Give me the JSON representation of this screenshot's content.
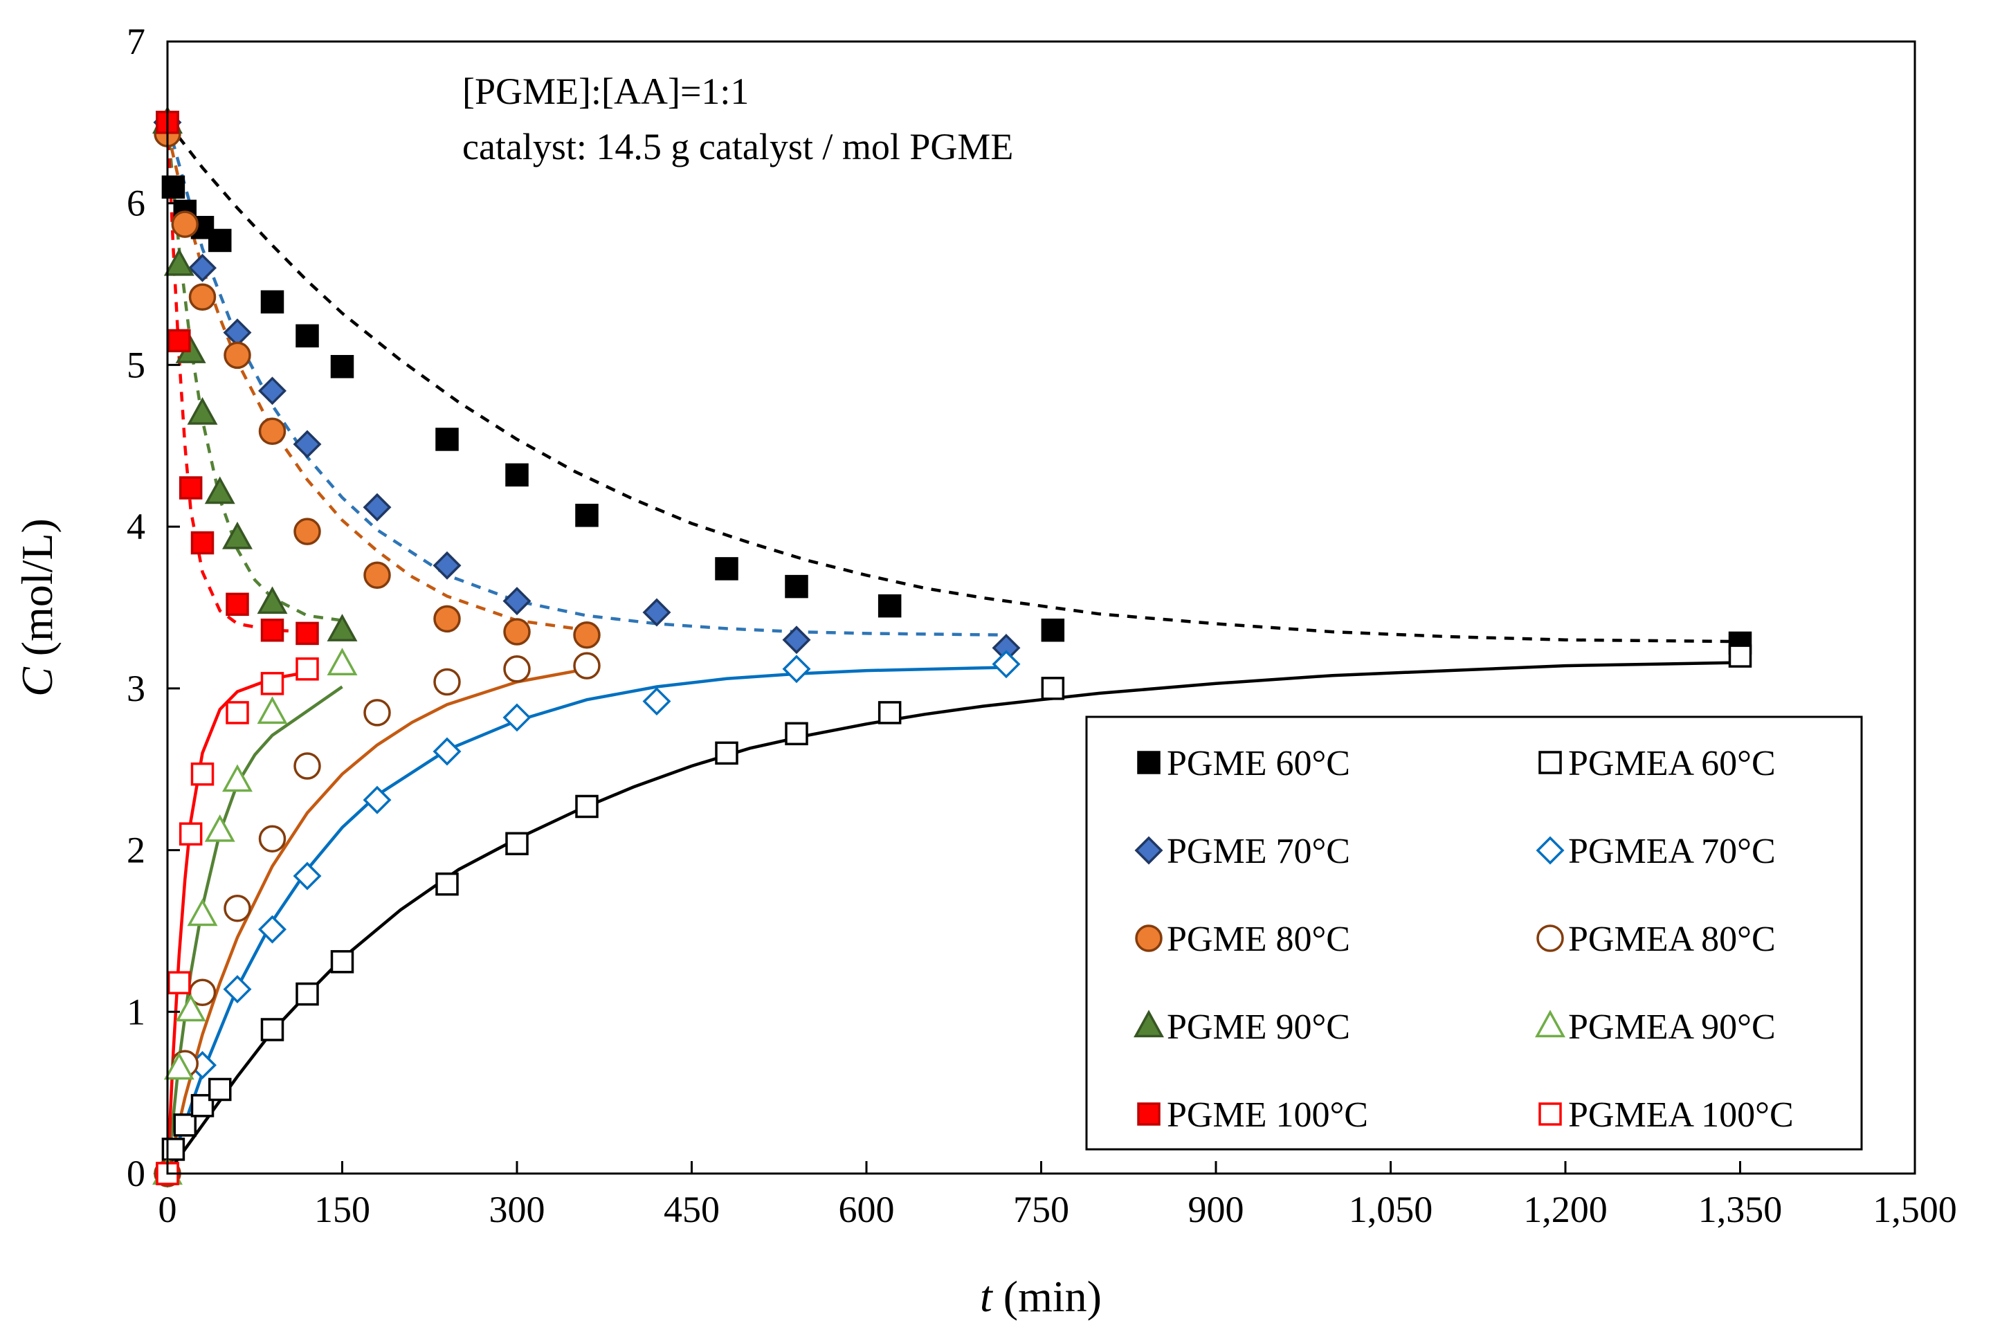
{
  "chart_data": {
    "type": "scatter",
    "title": "",
    "xlabel_italic": "t",
    "xlabel_rest": " (min)",
    "ylabel_italic": "C",
    "ylabel_rest": " (mol/L)",
    "xlim": [
      0,
      1500
    ],
    "ylim": [
      0,
      7
    ],
    "xticks": [
      0,
      150,
      300,
      450,
      600,
      750,
      900,
      1050,
      1200,
      1350,
      1500
    ],
    "xtick_labels": [
      "0",
      "150",
      "300",
      "450",
      "600",
      "750",
      "900",
      "1,050",
      "1,200",
      "1,350",
      "1,500"
    ],
    "yticks": [
      0,
      1,
      2,
      3,
      4,
      5,
      6,
      7
    ],
    "ytick_labels": [
      "0",
      "1",
      "2",
      "3",
      "4",
      "5",
      "6",
      "7"
    ],
    "grid": false,
    "legend_position": "bottom-right",
    "annotations": [
      "[PGME]:[AA]=1:1",
      "catalyst: 14.5 g catalyst / mol PGME"
    ],
    "series": [
      {
        "name": "PGME 60°C",
        "marker": "square",
        "filled": true,
        "fill": "#000000",
        "stroke": "#000000",
        "x": [
          0,
          5,
          15,
          30,
          45,
          90,
          120,
          150,
          240,
          300,
          360,
          480,
          540,
          620,
          760,
          1350
        ],
        "y": [
          6.5,
          6.1,
          5.95,
          5.85,
          5.77,
          5.39,
          5.18,
          4.99,
          4.54,
          4.32,
          4.07,
          3.74,
          3.63,
          3.51,
          3.36,
          3.28
        ]
      },
      {
        "name": "PGMEA 60°C",
        "marker": "square",
        "filled": false,
        "fill": "#ffffff",
        "stroke": "#000000",
        "x": [
          0,
          5,
          15,
          30,
          45,
          90,
          120,
          150,
          240,
          300,
          360,
          480,
          540,
          620,
          760,
          1350
        ],
        "y": [
          0,
          0.15,
          0.3,
          0.42,
          0.52,
          0.89,
          1.11,
          1.31,
          1.79,
          2.04,
          2.27,
          2.6,
          2.72,
          2.85,
          3.0,
          3.2
        ]
      },
      {
        "name": "PGME 70°C",
        "marker": "diamond",
        "filled": true,
        "fill": "#4472C4",
        "stroke": "#1F3864",
        "x": [
          0,
          30,
          60,
          90,
          120,
          180,
          240,
          300,
          420,
          540,
          720
        ],
        "y": [
          6.5,
          5.6,
          5.2,
          4.84,
          4.51,
          4.12,
          3.76,
          3.54,
          3.47,
          3.3,
          3.25
        ]
      },
      {
        "name": "PGMEA 70°C",
        "marker": "diamond",
        "filled": false,
        "fill": "#ffffff",
        "stroke": "#0070C0",
        "x": [
          0,
          30,
          60,
          90,
          120,
          180,
          240,
          300,
          420,
          540,
          720
        ],
        "y": [
          0,
          0.67,
          1.14,
          1.51,
          1.84,
          2.31,
          2.61,
          2.82,
          2.92,
          3.12,
          3.15
        ]
      },
      {
        "name": "PGME 80°C",
        "marker": "circle",
        "filled": true,
        "fill": "#ED7D31",
        "stroke": "#843C0C",
        "x": [
          0,
          15,
          30,
          60,
          90,
          120,
          180,
          240,
          300,
          360
        ],
        "y": [
          6.43,
          5.87,
          5.42,
          5.06,
          4.59,
          3.97,
          3.7,
          3.43,
          3.35,
          3.33
        ]
      },
      {
        "name": "PGMEA 80°C",
        "marker": "circle",
        "filled": false,
        "fill": "#ffffff",
        "stroke": "#843C0C",
        "x": [
          0,
          15,
          30,
          60,
          90,
          120,
          180,
          240,
          300,
          360
        ],
        "y": [
          0,
          0.68,
          1.12,
          1.64,
          2.07,
          2.52,
          2.85,
          3.04,
          3.12,
          3.14
        ]
      },
      {
        "name": "PGME 90°C",
        "marker": "triangle",
        "filled": true,
        "fill": "#548235",
        "stroke": "#375623",
        "x": [
          0,
          10,
          20,
          30,
          45,
          60,
          90,
          150
        ],
        "y": [
          6.5,
          5.62,
          5.08,
          4.7,
          4.21,
          3.93,
          3.53,
          3.36
        ]
      },
      {
        "name": "PGMEA 90°C",
        "marker": "triangle",
        "filled": false,
        "fill": "#ffffff",
        "stroke": "#70AD47",
        "x": [
          0,
          10,
          20,
          30,
          45,
          60,
          90,
          150
        ],
        "y": [
          0,
          0.65,
          1.01,
          1.6,
          2.12,
          2.43,
          2.85,
          3.15
        ]
      },
      {
        "name": "PGME 100°C",
        "marker": "square",
        "filled": true,
        "fill": "#FF0000",
        "stroke": "#C00000",
        "x": [
          0,
          10,
          20,
          30,
          60,
          90,
          120
        ],
        "y": [
          6.5,
          5.15,
          4.24,
          3.9,
          3.52,
          3.36,
          3.34
        ]
      },
      {
        "name": "PGMEA 100°C",
        "marker": "square",
        "filled": false,
        "fill": "#ffffff",
        "stroke": "#FF0000",
        "x": [
          0,
          10,
          20,
          30,
          60,
          90,
          120
        ],
        "y": [
          0,
          1.18,
          2.1,
          2.47,
          2.85,
          3.03,
          3.12
        ]
      }
    ],
    "fits": [
      {
        "series": "PGME 60°C",
        "style": "dashed",
        "color": "#000000",
        "x": [
          0,
          30,
          60,
          90,
          120,
          150,
          200,
          250,
          300,
          350,
          400,
          450,
          500,
          550,
          600,
          650,
          700,
          750,
          800,
          900,
          1000,
          1100,
          1200,
          1350
        ],
        "y": [
          6.5,
          6.22,
          5.97,
          5.74,
          5.52,
          5.32,
          5.03,
          4.77,
          4.54,
          4.34,
          4.17,
          4.02,
          3.9,
          3.79,
          3.7,
          3.62,
          3.56,
          3.51,
          3.46,
          3.4,
          3.35,
          3.32,
          3.3,
          3.29
        ]
      },
      {
        "series": "PGMEA 60°C",
        "style": "solid",
        "color": "#000000",
        "x": [
          0,
          30,
          60,
          90,
          120,
          150,
          200,
          250,
          300,
          350,
          400,
          450,
          500,
          550,
          600,
          650,
          700,
          750,
          800,
          900,
          1000,
          1100,
          1200,
          1350
        ],
        "y": [
          0,
          0.3,
          0.6,
          0.88,
          1.11,
          1.33,
          1.63,
          1.88,
          2.07,
          2.24,
          2.39,
          2.52,
          2.63,
          2.71,
          2.78,
          2.84,
          2.89,
          2.93,
          2.97,
          3.03,
          3.08,
          3.11,
          3.14,
          3.16
        ]
      },
      {
        "series": "PGME 70°C",
        "style": "dashed",
        "color": "#2E75B6",
        "x": [
          0,
          30,
          60,
          90,
          120,
          150,
          180,
          240,
          300,
          360,
          420,
          480,
          540,
          600,
          720
        ],
        "y": [
          6.5,
          5.72,
          5.16,
          4.75,
          4.43,
          4.18,
          3.98,
          3.7,
          3.54,
          3.45,
          3.4,
          3.37,
          3.35,
          3.34,
          3.33
        ]
      },
      {
        "series": "PGMEA 70°C",
        "style": "solid",
        "color": "#0070C0",
        "x": [
          0,
          30,
          60,
          90,
          120,
          150,
          180,
          240,
          300,
          360,
          420,
          480,
          540,
          600,
          720
        ],
        "y": [
          0,
          0.62,
          1.15,
          1.56,
          1.88,
          2.14,
          2.34,
          2.62,
          2.8,
          2.93,
          3.01,
          3.06,
          3.09,
          3.11,
          3.13
        ]
      },
      {
        "series": "PGME 80°C",
        "style": "dashed",
        "color": "#C55A11",
        "x": [
          0,
          15,
          30,
          45,
          60,
          90,
          120,
          150,
          180,
          210,
          240,
          300,
          360
        ],
        "y": [
          6.45,
          5.98,
          5.6,
          5.29,
          5.02,
          4.6,
          4.29,
          4.04,
          3.85,
          3.69,
          3.57,
          3.42,
          3.36
        ]
      },
      {
        "series": "PGMEA 80°C",
        "style": "solid",
        "color": "#C55A11",
        "x": [
          0,
          15,
          30,
          45,
          60,
          90,
          120,
          150,
          180,
          210,
          240,
          300,
          360
        ],
        "y": [
          0,
          0.47,
          0.86,
          1.18,
          1.46,
          1.9,
          2.23,
          2.47,
          2.65,
          2.79,
          2.9,
          3.04,
          3.12
        ]
      },
      {
        "series": "PGME 90°C",
        "style": "dashed",
        "color": "#548235",
        "x": [
          0,
          10,
          20,
          30,
          45,
          60,
          75,
          90,
          120,
          150
        ],
        "y": [
          6.5,
          5.72,
          5.12,
          4.66,
          4.17,
          3.86,
          3.67,
          3.56,
          3.45,
          3.42
        ]
      },
      {
        "series": "PGMEA 90°C",
        "style": "solid",
        "color": "#548235",
        "x": [
          0,
          10,
          20,
          30,
          45,
          60,
          75,
          90,
          120,
          150
        ],
        "y": [
          0,
          0.7,
          1.24,
          1.65,
          2.11,
          2.41,
          2.59,
          2.71,
          2.86,
          3.01
        ]
      },
      {
        "series": "PGME 100°C",
        "style": "dashed",
        "color": "#FF0000",
        "x": [
          0,
          5,
          10,
          15,
          20,
          30,
          45,
          60,
          90,
          120
        ],
        "y": [
          6.5,
          5.72,
          5.05,
          4.5,
          4.1,
          3.72,
          3.48,
          3.4,
          3.36,
          3.35
        ]
      },
      {
        "series": "PGMEA 100°C",
        "style": "solid",
        "color": "#FF0000",
        "x": [
          0,
          5,
          10,
          15,
          20,
          30,
          45,
          60,
          90,
          120
        ],
        "y": [
          0,
          0.75,
          1.35,
          1.82,
          2.18,
          2.6,
          2.87,
          2.98,
          3.06,
          3.1
        ]
      }
    ]
  }
}
